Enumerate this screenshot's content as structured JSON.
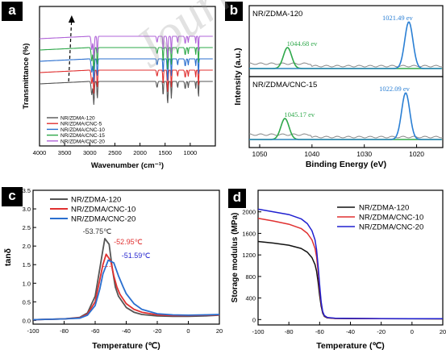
{
  "chart_data": [
    {
      "panel": "a",
      "type": "line",
      "xlabel": "Wavenumber (cm⁻¹)",
      "ylabel": "Transmittance (%)",
      "xlim": [
        4000,
        500
      ],
      "x_ticks": [
        4000,
        3500,
        3000,
        2500,
        2000,
        1500,
        1000
      ],
      "series": [
        {
          "name": "NR/ZDMA-120",
          "color": "#555555",
          "offset": 0
        },
        {
          "name": "NR/ZDMA/CNC-5",
          "color": "#e03030",
          "offset": 1
        },
        {
          "name": "NR/ZDMA/CNC-10",
          "color": "#2a6fcf",
          "offset": 2
        },
        {
          "name": "NR/ZDMA/CNC-15",
          "color": "#2ea84a",
          "offset": 3
        },
        {
          "name": "NR/ZDMA/CNC-20",
          "color": "#b064d8",
          "offset": 4
        }
      ]
    },
    {
      "panel": "b",
      "type": "line",
      "xlabel": "Binding Energy (eV)",
      "ylabel": "Intensity (a.u.)",
      "xlim": [
        1052,
        1015
      ],
      "x_ticks": [
        1050,
        1040,
        1030,
        1020
      ],
      "subplots": [
        {
          "label": "NR/ZDMA-120",
          "peaks": [
            {
              "x": 1044.68,
              "label": "1044.68 ev",
              "color": "#2ea84a",
              "height": 0.45
            },
            {
              "x": 1021.49,
              "label": "1021.49 ev",
              "color": "#2a7fd4",
              "height": 1.0
            }
          ]
        },
        {
          "label": "NR/ZDMA/CNC-15",
          "peaks": [
            {
              "x": 1045.17,
              "label": "1045.17 ev",
              "color": "#2ea84a",
              "height": 0.45
            },
            {
              "x": 1022.09,
              "label": "1022.09 ev",
              "color": "#2a7fd4",
              "height": 1.0
            }
          ]
        }
      ]
    },
    {
      "panel": "c",
      "type": "line",
      "xlabel": "Temperature (℃)",
      "ylabel": "tanδ",
      "xlim": [
        -100,
        20
      ],
      "ylim": [
        -0.1,
        3.5
      ],
      "x_ticks": [
        -100,
        -80,
        -60,
        -40,
        -20,
        0,
        20
      ],
      "y_ticks": [
        0.0,
        0.5,
        1.0,
        1.5,
        2.0,
        2.5,
        3.0,
        3.5
      ],
      "legend": "top-left",
      "series": [
        {
          "name": "NR/ZDMA-120",
          "color": "#555555",
          "x": [
            -100,
            -90,
            -80,
            -70,
            -65,
            -60,
            -57,
            -55,
            -53.75,
            -51,
            -49,
            -47,
            -45,
            -40,
            -35,
            -30,
            -20,
            -10,
            0,
            10,
            20
          ],
          "y": [
            0.02,
            0.03,
            0.04,
            0.08,
            0.2,
            0.65,
            1.4,
            1.9,
            2.2,
            2.05,
            1.4,
            0.9,
            0.65,
            0.35,
            0.22,
            0.16,
            0.12,
            0.11,
            0.11,
            0.12,
            0.14
          ]
        },
        {
          "name": "NR/ZDMA/CNC-10",
          "color": "#e03030",
          "x": [
            -100,
            -90,
            -80,
            -70,
            -65,
            -60,
            -57,
            -55,
            -52.95,
            -50,
            -48,
            -46,
            -44,
            -40,
            -35,
            -30,
            -20,
            -10,
            0,
            10,
            20
          ],
          "y": [
            0.02,
            0.03,
            0.04,
            0.07,
            0.17,
            0.5,
            1.1,
            1.5,
            1.78,
            1.6,
            1.2,
            0.9,
            0.7,
            0.45,
            0.3,
            0.22,
            0.15,
            0.13,
            0.13,
            0.14,
            0.15
          ]
        },
        {
          "name": "NR/ZDMA/CNC-20",
          "color": "#2a6fcf",
          "x": [
            -100,
            -90,
            -80,
            -70,
            -65,
            -60,
            -57,
            -55,
            -51.59,
            -48,
            -45,
            -42,
            -40,
            -35,
            -30,
            -20,
            -10,
            0,
            10,
            20
          ],
          "y": [
            0.02,
            0.03,
            0.04,
            0.06,
            0.14,
            0.4,
            0.85,
            1.25,
            1.62,
            1.55,
            1.2,
            0.9,
            0.72,
            0.45,
            0.3,
            0.18,
            0.15,
            0.14,
            0.15,
            0.16
          ]
        }
      ],
      "annotations": [
        {
          "text": "-53.75℃",
          "color": "#333333",
          "x": -53.75,
          "y": 2.2
        },
        {
          "text": "-52.95℃",
          "color": "#e03030",
          "x": -52.95,
          "y": 1.78
        },
        {
          "text": "-51.59℃",
          "color": "#2a2ad0",
          "x": -51.59,
          "y": 1.62
        }
      ]
    },
    {
      "panel": "d",
      "type": "line",
      "xlabel": "Temperature (℃)",
      "ylabel": "Storage modulus (MPa)",
      "xlim": [
        -100,
        20
      ],
      "ylim": [
        -100,
        2400
      ],
      "x_ticks": [
        -100,
        -80,
        -60,
        -40,
        -20,
        0,
        20
      ],
      "y_ticks": [
        0,
        400,
        800,
        1200,
        1600,
        2000
      ],
      "legend": "top-right",
      "series": [
        {
          "name": "NR/ZDMA-120",
          "color": "#111111",
          "x": [
            -100,
            -90,
            -80,
            -72,
            -68,
            -65,
            -63,
            -62,
            -61,
            -60,
            -59,
            -58,
            -57,
            -55,
            -50,
            -40,
            -20,
            0,
            20
          ],
          "y": [
            1450,
            1420,
            1380,
            1320,
            1250,
            1150,
            1020,
            900,
            700,
            450,
            250,
            120,
            60,
            30,
            20,
            18,
            15,
            14,
            13
          ]
        },
        {
          "name": "NR/ZDMA/CNC-10",
          "color": "#e03030",
          "x": [
            -100,
            -90,
            -80,
            -72,
            -68,
            -65,
            -63,
            -62,
            -61,
            -60,
            -59,
            -58,
            -57,
            -55,
            -50,
            -40,
            -20,
            0,
            20
          ],
          "y": [
            1880,
            1830,
            1770,
            1690,
            1600,
            1480,
            1320,
            1170,
            900,
            580,
            300,
            140,
            70,
            35,
            22,
            20,
            16,
            15,
            14
          ]
        },
        {
          "name": "NR/ZDMA/CNC-20",
          "color": "#2020d0",
          "x": [
            -100,
            -90,
            -80,
            -72,
            -68,
            -65,
            -63,
            -62,
            -61,
            -60,
            -59,
            -58,
            -57,
            -55,
            -50,
            -40,
            -20,
            0,
            20
          ],
          "y": [
            2050,
            2000,
            1950,
            1870,
            1780,
            1650,
            1480,
            1300,
            1000,
            650,
            330,
            150,
            75,
            38,
            25,
            22,
            18,
            16,
            15
          ]
        }
      ]
    }
  ],
  "labels": {
    "a": "a",
    "b": "b",
    "c": "c",
    "d": "d"
  },
  "watermark": "Journal Pre-proof"
}
